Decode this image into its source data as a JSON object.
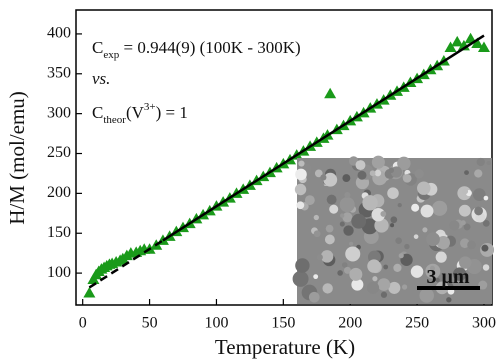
{
  "chart_data": {
    "type": "scatter",
    "x_label": "Temperature (K)",
    "y_label": "H/M (mol/emu)",
    "xlim": [
      -5,
      306
    ],
    "ylim": [
      60,
      430
    ],
    "xticks": [
      0,
      50,
      100,
      150,
      200,
      250,
      300
    ],
    "yticks": [
      100,
      150,
      200,
      250,
      300,
      350,
      400
    ],
    "color": "#1a9a1a",
    "x": [
      5,
      8,
      10,
      12,
      14,
      16,
      18,
      20,
      22,
      25,
      28,
      30,
      33,
      36,
      40,
      43,
      46,
      50,
      55,
      60,
      65,
      70,
      75,
      80,
      85,
      90,
      95,
      100,
      105,
      110,
      115,
      120,
      125,
      130,
      135,
      140,
      145,
      150,
      155,
      160,
      165,
      170,
      175,
      180,
      183,
      185,
      190,
      195,
      200,
      205,
      210,
      215,
      220,
      225,
      230,
      235,
      240,
      245,
      250,
      255,
      260,
      265,
      270,
      275,
      280,
      285,
      290,
      295,
      300
    ],
    "values": [
      75,
      92,
      98,
      102,
      105,
      107,
      109,
      111,
      112,
      114,
      116,
      118,
      122,
      125,
      126,
      128,
      130,
      130,
      135,
      141,
      146,
      152,
      157,
      162,
      168,
      173,
      178,
      184,
      189,
      194,
      200,
      205,
      210,
      216,
      221,
      226,
      232,
      237,
      242,
      248,
      253,
      259,
      264,
      269,
      273,
      325,
      280,
      285,
      291,
      296,
      301,
      307,
      312,
      317,
      323,
      328,
      333,
      339,
      344,
      349,
      355,
      360,
      366,
      383,
      390,
      385,
      394,
      388,
      383
    ],
    "fits": [
      {
        "x": [
          5,
          60
        ],
        "values": [
          82,
          141
        ],
        "dashed": true
      },
      {
        "x": [
          60,
          300
        ],
        "values": [
          141,
          398
        ],
        "dashed": false
      }
    ],
    "fit_color": "#000000",
    "annotations": [
      [
        "C",
        "exp",
        " = 0.944(9) (100K - 300K)"
      ],
      "vs.",
      [
        "C",
        "theor",
        "(V",
        "3+",
        ") = 1"
      ]
    ],
    "inset_scale": "3 μm"
  }
}
